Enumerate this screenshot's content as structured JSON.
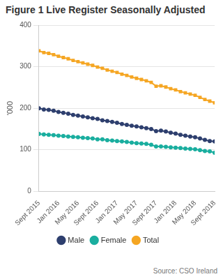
{
  "chart_data": {
    "type": "line",
    "title": "Figure 1 Live Register Seasonally Adjusted",
    "y_label": "'000",
    "annotation": "Source: CSO Ireland",
    "categories": [
      "Sept 2015",
      null,
      null,
      null,
      "Jan 2016",
      null,
      null,
      null,
      "May 2016",
      null,
      null,
      null,
      "Sept 2016",
      null,
      null,
      null,
      "Jan 2017",
      null,
      null,
      null,
      "May 2017",
      null,
      null,
      null,
      "Sept 2017",
      null,
      null,
      null,
      "Jan 2018",
      null,
      null,
      null,
      "May 2018",
      null,
      null,
      null,
      "Sept 2018"
    ],
    "series": [
      {
        "name": "Male",
        "color": "#2e3f6e",
        "marker": "circle",
        "values": [
          200,
          197,
          196,
          194,
          191,
          189,
          187,
          184,
          182,
          180,
          178,
          176,
          174,
          171,
          169,
          167,
          165,
          162,
          160,
          158,
          156,
          154,
          152,
          150,
          145,
          146,
          144,
          141,
          139,
          136,
          134,
          132,
          130,
          127,
          124,
          121,
          120
        ]
      },
      {
        "name": "Female",
        "color": "#1aae9f",
        "marker": "circle",
        "values": [
          138,
          137,
          136,
          135,
          134,
          133,
          132,
          131,
          130,
          129,
          128,
          127,
          125,
          125,
          123,
          122,
          121,
          120,
          119,
          117,
          116,
          115,
          114,
          112,
          108,
          108,
          107,
          106,
          105,
          104,
          103,
          102,
          101,
          99,
          97,
          96,
          93
        ]
      },
      {
        "name": "Total",
        "color": "#f5a623",
        "marker": "rect",
        "values": [
          338,
          334,
          332,
          329,
          325,
          322,
          319,
          315,
          312,
          309,
          306,
          303,
          299,
          296,
          292,
          289,
          286,
          282,
          279,
          275,
          272,
          269,
          266,
          262,
          253,
          254,
          251,
          247,
          244,
          240,
          237,
          234,
          231,
          226,
          221,
          217,
          213
        ]
      }
    ],
    "ylim": [
      0,
      400
    ],
    "yticks": [
      0,
      100,
      200,
      300,
      400
    ],
    "grid": true,
    "legend": "bottom"
  }
}
